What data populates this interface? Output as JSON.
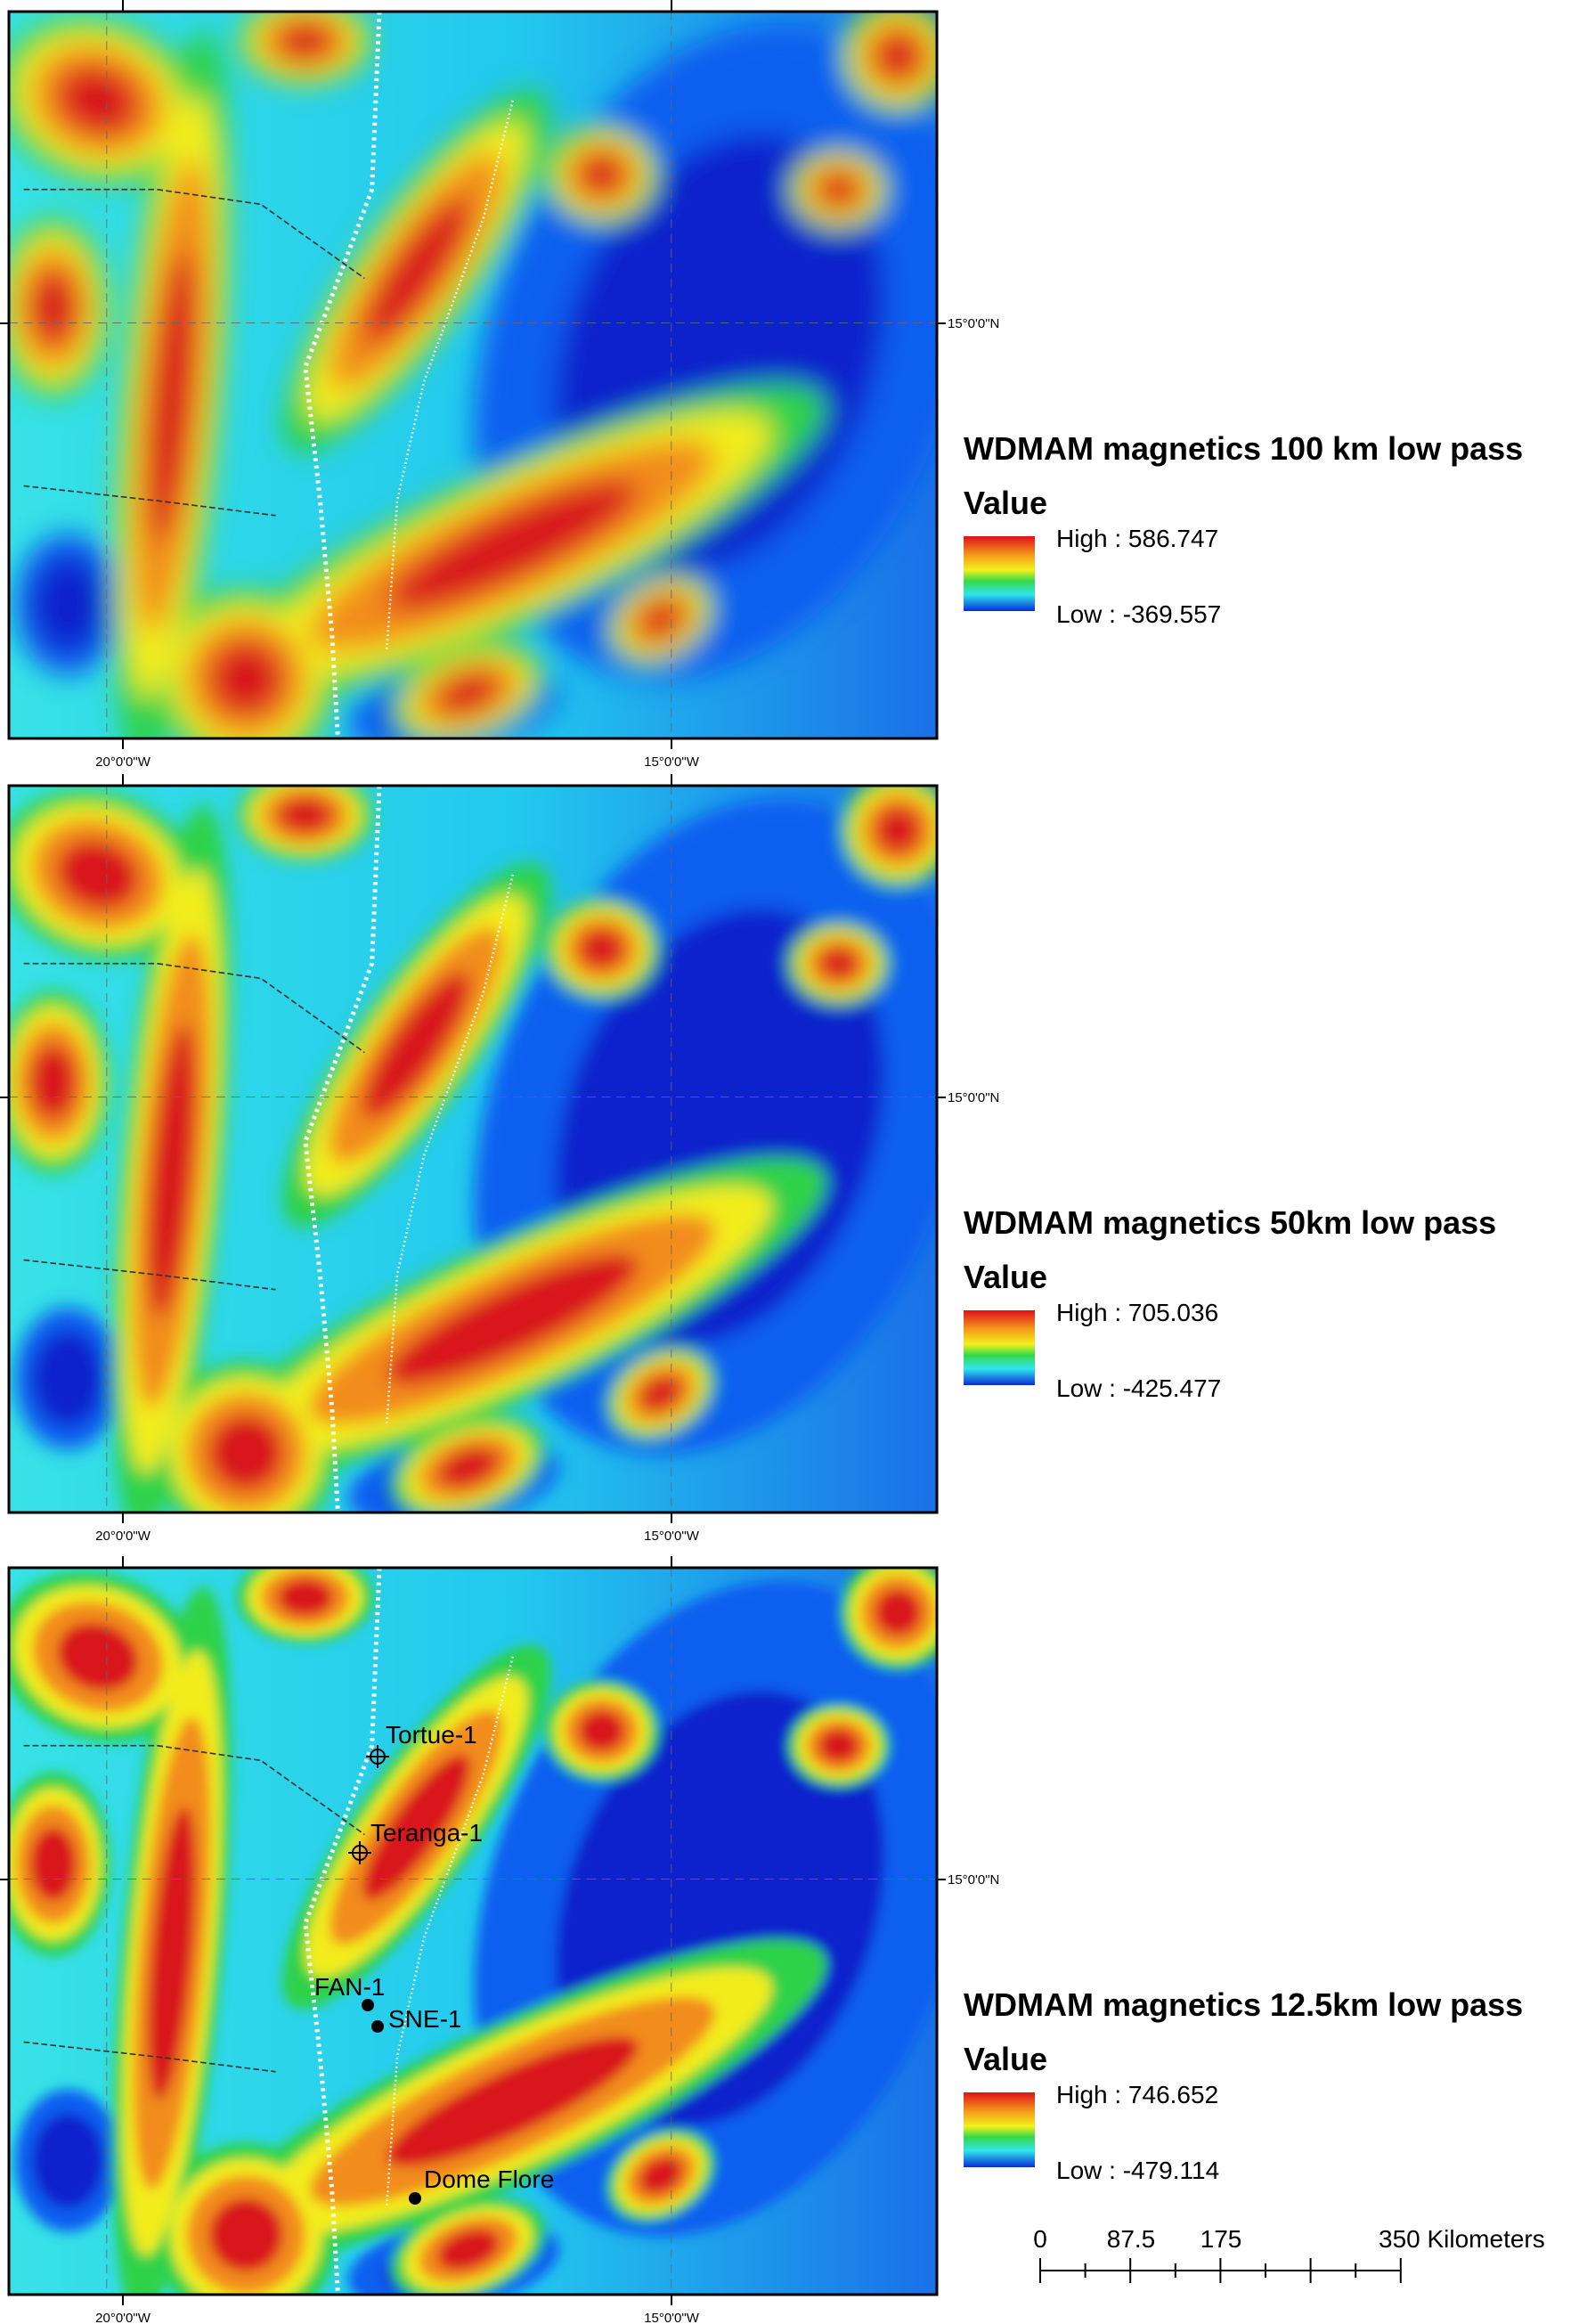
{
  "panels": [
    {
      "title": "WDMAM magnetics 100 km low pass",
      "legend_label": "Value",
      "high": "High : 586.747",
      "low": "Low : -369.557",
      "lon_labels": [
        "20°0'0\"W",
        "15°0'0\"W"
      ],
      "lat_label": "15°0'0\"N"
    },
    {
      "title": "WDMAM magnetics 50km low pass",
      "legend_label": "Value",
      "high": "High : 705.036",
      "low": "Low : -425.477",
      "lon_labels": [
        "20°0'0\"W",
        "15°0'0\"W"
      ],
      "lat_label": "15°0'0\"N"
    },
    {
      "title": "WDMAM magnetics 12.5km low pass",
      "legend_label": "Value",
      "high": "High : 746.652",
      "low": "Low : -479.114",
      "lon_labels": [
        "20°0'0\"W",
        "15°0'0\"W"
      ],
      "lat_label": "15°0'0\"N"
    }
  ],
  "wells": [
    "Tortue-1",
    "Teranga-1",
    "FAN-1",
    "SNE-1",
    "Dome Flore"
  ],
  "scale_bar": {
    "labels": [
      "0",
      "87.5",
      "175",
      "350 Kilometers"
    ]
  }
}
